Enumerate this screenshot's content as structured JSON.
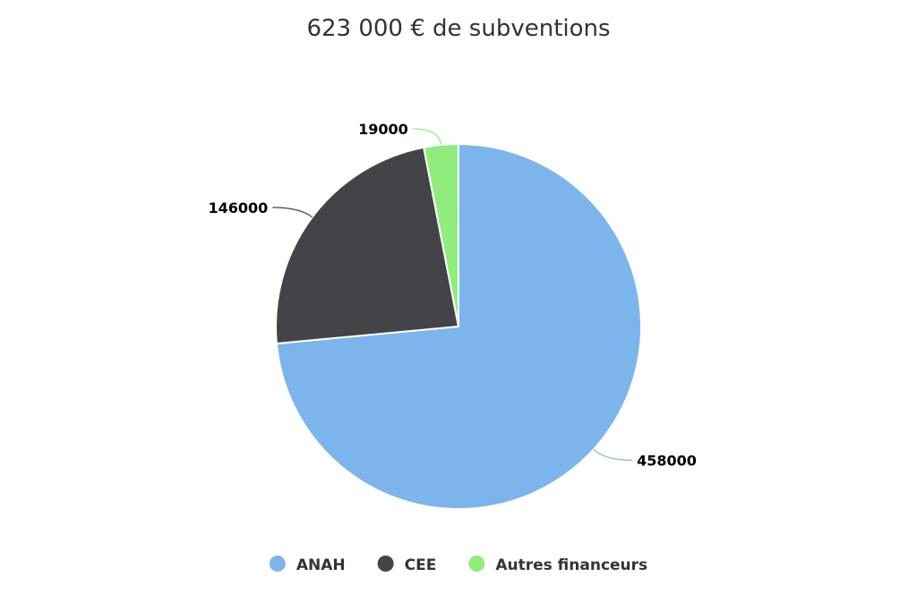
{
  "chart_data": {
    "type": "pie",
    "title": "623 000 € de subventions",
    "categories": [
      "ANAH",
      "CEE",
      "Autres financeurs"
    ],
    "values": [
      458000,
      146000,
      19000
    ],
    "data_labels": [
      "458000",
      "146000",
      "19000"
    ],
    "colors": [
      "#7cb5ec",
      "#434348",
      "#90ed7d"
    ],
    "legend": {
      "placement": "bottom-center",
      "items": [
        "ANAH",
        "CEE",
        "Autres financeurs"
      ]
    }
  }
}
